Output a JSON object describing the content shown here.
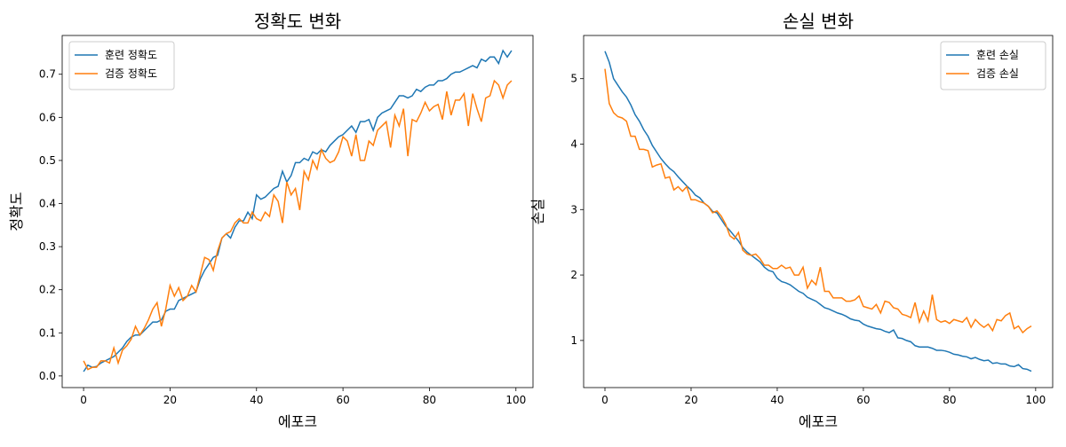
{
  "chart_data": [
    {
      "type": "line",
      "title": "정확도 변화",
      "x_label": "에포크",
      "y_label": "정확도",
      "x": [
        0,
        1,
        2,
        3,
        4,
        5,
        6,
        7,
        8,
        9,
        10,
        11,
        12,
        13,
        14,
        15,
        16,
        17,
        18,
        19,
        20,
        21,
        22,
        23,
        24,
        25,
        26,
        27,
        28,
        29,
        30,
        31,
        32,
        33,
        34,
        35,
        36,
        37,
        38,
        39,
        40,
        41,
        42,
        43,
        44,
        45,
        46,
        47,
        48,
        49,
        50,
        51,
        52,
        53,
        54,
        55,
        56,
        57,
        58,
        59,
        60,
        61,
        62,
        63,
        64,
        65,
        66,
        67,
        68,
        69,
        70,
        71,
        72,
        73,
        74,
        75,
        76,
        77,
        78,
        79,
        80,
        81,
        82,
        83,
        84,
        85,
        86,
        87,
        88,
        89,
        90,
        91,
        92,
        93,
        94,
        95,
        96,
        97,
        98,
        99
      ],
      "series": [
        {
          "name": "훈련 정확도",
          "color": "#1f77b4",
          "values": [
            0.01,
            0.025,
            0.02,
            0.022,
            0.03,
            0.035,
            0.04,
            0.045,
            0.055,
            0.065,
            0.08,
            0.09,
            0.095,
            0.095,
            0.105,
            0.115,
            0.125,
            0.125,
            0.13,
            0.15,
            0.155,
            0.155,
            0.175,
            0.18,
            0.185,
            0.19,
            0.195,
            0.225,
            0.245,
            0.26,
            0.275,
            0.28,
            0.32,
            0.33,
            0.32,
            0.345,
            0.36,
            0.36,
            0.38,
            0.365,
            0.42,
            0.41,
            0.415,
            0.425,
            0.435,
            0.44,
            0.475,
            0.45,
            0.465,
            0.495,
            0.495,
            0.505,
            0.5,
            0.52,
            0.515,
            0.525,
            0.52,
            0.535,
            0.545,
            0.555,
            0.56,
            0.57,
            0.58,
            0.565,
            0.59,
            0.59,
            0.595,
            0.57,
            0.6,
            0.61,
            0.615,
            0.62,
            0.635,
            0.65,
            0.65,
            0.645,
            0.65,
            0.665,
            0.66,
            0.67,
            0.675,
            0.675,
            0.685,
            0.685,
            0.69,
            0.7,
            0.705,
            0.705,
            0.71,
            0.715,
            0.72,
            0.715,
            0.735,
            0.73,
            0.74,
            0.74,
            0.725,
            0.755,
            0.74,
            0.755
          ]
        },
        {
          "name": "검증 정확도",
          "color": "#ff7f0e",
          "values": [
            0.035,
            0.015,
            0.02,
            0.02,
            0.035,
            0.035,
            0.03,
            0.065,
            0.03,
            0.06,
            0.07,
            0.085,
            0.115,
            0.095,
            0.11,
            0.13,
            0.155,
            0.17,
            0.115,
            0.155,
            0.21,
            0.185,
            0.205,
            0.175,
            0.185,
            0.21,
            0.195,
            0.235,
            0.275,
            0.27,
            0.245,
            0.29,
            0.32,
            0.33,
            0.335,
            0.355,
            0.365,
            0.355,
            0.355,
            0.38,
            0.365,
            0.36,
            0.38,
            0.37,
            0.42,
            0.405,
            0.355,
            0.45,
            0.42,
            0.435,
            0.385,
            0.475,
            0.455,
            0.5,
            0.48,
            0.525,
            0.505,
            0.495,
            0.5,
            0.52,
            0.555,
            0.545,
            0.51,
            0.56,
            0.5,
            0.5,
            0.545,
            0.535,
            0.57,
            0.58,
            0.59,
            0.53,
            0.605,
            0.58,
            0.62,
            0.51,
            0.595,
            0.59,
            0.61,
            0.635,
            0.615,
            0.625,
            0.63,
            0.595,
            0.66,
            0.605,
            0.64,
            0.64,
            0.655,
            0.58,
            0.655,
            0.62,
            0.59,
            0.645,
            0.65,
            0.685,
            0.675,
            0.645,
            0.675,
            0.685
          ]
        }
      ],
      "xlim": [
        -4.95,
        103.95
      ],
      "xticks": [
        0,
        20,
        40,
        60,
        80,
        100
      ],
      "ylim": [
        -0.027,
        0.79
      ],
      "yticks": [
        {
          "value": 0,
          "label": "0.0"
        },
        0.1,
        0.2,
        0.3,
        0.4,
        0.5,
        0.6,
        0.7
      ],
      "legend": "upper left"
    },
    {
      "type": "line",
      "title": "손실 변화",
      "x_label": "에포크",
      "y_label": "손실",
      "x": [
        0,
        1,
        2,
        3,
        4,
        5,
        6,
        7,
        8,
        9,
        10,
        11,
        12,
        13,
        14,
        15,
        16,
        17,
        18,
        19,
        20,
        21,
        22,
        23,
        24,
        25,
        26,
        27,
        28,
        29,
        30,
        31,
        32,
        33,
        34,
        35,
        36,
        37,
        38,
        39,
        40,
        41,
        42,
        43,
        44,
        45,
        46,
        47,
        48,
        49,
        50,
        51,
        52,
        53,
        54,
        55,
        56,
        57,
        58,
        59,
        60,
        61,
        62,
        63,
        64,
        65,
        66,
        67,
        68,
        69,
        70,
        71,
        72,
        73,
        74,
        75,
        76,
        77,
        78,
        79,
        80,
        81,
        82,
        83,
        84,
        85,
        86,
        87,
        88,
        89,
        90,
        91,
        92,
        93,
        94,
        95,
        96,
        97,
        98,
        99
      ],
      "series": [
        {
          "name": "훈련 손실",
          "color": "#1f77b4",
          "values": [
            5.42,
            5.25,
            5.0,
            4.9,
            4.8,
            4.72,
            4.6,
            4.45,
            4.35,
            4.22,
            4.12,
            3.98,
            3.88,
            3.78,
            3.7,
            3.63,
            3.58,
            3.5,
            3.43,
            3.36,
            3.3,
            3.22,
            3.18,
            3.1,
            3.05,
            2.97,
            2.95,
            2.85,
            2.75,
            2.68,
            2.6,
            2.52,
            2.42,
            2.35,
            2.3,
            2.25,
            2.2,
            2.12,
            2.07,
            2.05,
            1.95,
            1.9,
            1.88,
            1.85,
            1.8,
            1.75,
            1.72,
            1.66,
            1.63,
            1.6,
            1.55,
            1.5,
            1.48,
            1.45,
            1.42,
            1.4,
            1.37,
            1.33,
            1.31,
            1.3,
            1.25,
            1.22,
            1.2,
            1.18,
            1.17,
            1.14,
            1.12,
            1.16,
            1.04,
            1.03,
            1.0,
            0.98,
            0.92,
            0.9,
            0.9,
            0.9,
            0.88,
            0.85,
            0.85,
            0.84,
            0.82,
            0.79,
            0.78,
            0.76,
            0.75,
            0.72,
            0.74,
            0.71,
            0.69,
            0.7,
            0.65,
            0.66,
            0.64,
            0.64,
            0.61,
            0.6,
            0.63,
            0.57,
            0.56,
            0.53
          ]
        },
        {
          "name": "검증 손실",
          "color": "#ff7f0e",
          "values": [
            5.15,
            4.62,
            4.48,
            4.42,
            4.4,
            4.35,
            4.12,
            4.12,
            3.92,
            3.92,
            3.9,
            3.65,
            3.68,
            3.7,
            3.48,
            3.5,
            3.3,
            3.35,
            3.28,
            3.35,
            3.15,
            3.15,
            3.12,
            3.1,
            3.05,
            2.95,
            2.98,
            2.9,
            2.78,
            2.6,
            2.55,
            2.65,
            2.38,
            2.32,
            2.3,
            2.32,
            2.25,
            2.15,
            2.15,
            2.1,
            2.1,
            2.15,
            2.1,
            2.12,
            2.0,
            2.0,
            2.12,
            1.8,
            1.92,
            1.85,
            2.12,
            1.75,
            1.75,
            1.65,
            1.65,
            1.65,
            1.6,
            1.6,
            1.62,
            1.68,
            1.52,
            1.5,
            1.48,
            1.55,
            1.42,
            1.6,
            1.58,
            1.5,
            1.48,
            1.4,
            1.38,
            1.35,
            1.58,
            1.28,
            1.45,
            1.3,
            1.7,
            1.32,
            1.28,
            1.3,
            1.26,
            1.32,
            1.3,
            1.28,
            1.35,
            1.2,
            1.32,
            1.25,
            1.2,
            1.25,
            1.15,
            1.32,
            1.3,
            1.38,
            1.42,
            1.18,
            1.22,
            1.12,
            1.18,
            1.22
          ]
        }
      ],
      "xlim": [
        -4.95,
        103.95
      ],
      "xticks": [
        0,
        20,
        40,
        60,
        80,
        100
      ],
      "ylim": [
        0.28,
        5.66
      ],
      "yticks": [
        1,
        2,
        3,
        4,
        5
      ],
      "legend": "upper right"
    }
  ]
}
